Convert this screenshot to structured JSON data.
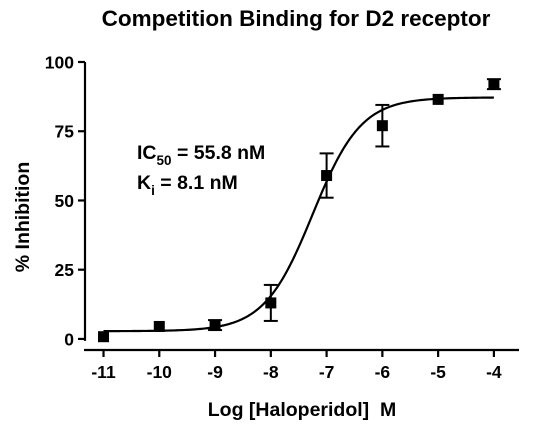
{
  "chart_data": {
    "type": "scatter",
    "title": "Competition Binding for D2 receptor",
    "xlabel": "Log [Haloperidol]  M",
    "ylabel": "% Inhibition",
    "xlim": [
      -11.35,
      -3.55
    ],
    "ylim": [
      -4,
      100
    ],
    "x_ticks": [
      -11,
      -10,
      -9,
      -8,
      -7,
      -6,
      -5,
      -4
    ],
    "x_tick_labels": [
      "-11",
      "-10",
      "-9",
      "-8",
      "-7",
      "-6",
      "-5",
      "-4"
    ],
    "y_ticks": [
      0,
      25,
      50,
      75,
      100
    ],
    "y_tick_labels": [
      "0",
      "25",
      "50",
      "75",
      "100"
    ],
    "grid": false,
    "series": [
      {
        "x": [
          -11,
          -10,
          -9,
          -8,
          -7,
          -6,
          -5,
          -4
        ],
        "y": [
          0.8,
          4.5,
          5.0,
          13.0,
          59.0,
          77.0,
          86.5,
          92.0
        ],
        "err": [
          0.5,
          0.5,
          1.8,
          6.5,
          8.0,
          7.5,
          0.8,
          1.8
        ],
        "color": "#000000"
      }
    ],
    "fit": {
      "model": "sigmoidal dose-response",
      "bottom": 2.8,
      "top": 87.2,
      "log_ic50": -7.25,
      "hill": 1.0
    },
    "annotations": [
      {
        "lines": [
          {
            "main": "IC",
            "sub": "50",
            "rest": " = 55.8 nM"
          },
          {
            "main": "K",
            "sub": "i",
            "rest": " = 8.1 nM"
          }
        ]
      }
    ]
  }
}
